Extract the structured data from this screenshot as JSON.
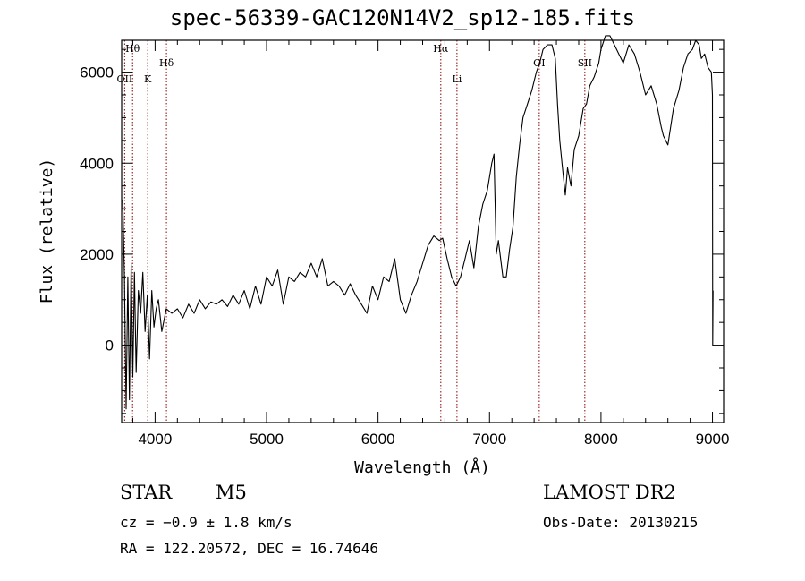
{
  "title": "spec-56339-GAC120N14V2_sp12-185.fits",
  "chart_data": {
    "type": "line",
    "xlabel": "Wavelength (Å)",
    "ylabel": "Flux (relative)",
    "xlim": [
      3700,
      9100
    ],
    "ylim": [
      -1700,
      6700
    ],
    "xticks": [
      4000,
      5000,
      6000,
      7000,
      8000,
      9000
    ],
    "yticks": [
      0,
      2000,
      4000,
      6000
    ],
    "grid": false,
    "line_color": "#000000",
    "marker_color": "#8b0000",
    "lines": [
      {
        "label": "OII",
        "x": 3727
      },
      {
        "label": "Hθ",
        "x": 3798
      },
      {
        "label": "K",
        "x": 3934
      },
      {
        "label": "Hδ",
        "x": 4102
      },
      {
        "label": "Hα",
        "x": 6563
      },
      {
        "label": "Li",
        "x": 6708
      },
      {
        "label": "OI",
        "x": 7446
      },
      {
        "label": "SII",
        "x": 7855
      }
    ],
    "series": [
      {
        "x": [
          3710,
          3725,
          3740,
          3755,
          3770,
          3785,
          3800,
          3815,
          3830,
          3850,
          3870,
          3890,
          3910,
          3930,
          3950,
          3970,
          3990,
          4010,
          4030,
          4060,
          4100,
          4150,
          4200,
          4250,
          4300,
          4350,
          4400,
          4450,
          4500,
          4550,
          4600,
          4650,
          4700,
          4750,
          4800,
          4850,
          4900,
          4950,
          5000,
          5050,
          5100,
          5150,
          5200,
          5250,
          5300,
          5350,
          5400,
          5450,
          5500,
          5550,
          5600,
          5650,
          5700,
          5750,
          5800,
          5850,
          5900,
          5950,
          6000,
          6050,
          6100,
          6150,
          6200,
          6250,
          6300,
          6350,
          6400,
          6450,
          6500,
          6550,
          6580,
          6620,
          6660,
          6700,
          6740,
          6780,
          6820,
          6860,
          6900,
          6940,
          6980,
          7020,
          7040,
          7060,
          7080,
          7100,
          7120,
          7150,
          7180,
          7210,
          7240,
          7270,
          7300,
          7340,
          7380,
          7420,
          7450,
          7480,
          7520,
          7560,
          7590,
          7610,
          7630,
          7650,
          7680,
          7700,
          7730,
          7760,
          7800,
          7840,
          7870,
          7900,
          7940,
          7980,
          8000,
          8040,
          8080,
          8120,
          8160,
          8200,
          8250,
          8300,
          8350,
          8400,
          8450,
          8500,
          8540,
          8560,
          8600,
          8650,
          8700,
          8740,
          8780,
          8820,
          8850,
          8880,
          8900,
          8930,
          8960,
          8990,
          9000,
          9002,
          9005
        ],
        "values": [
          3200,
          1500,
          -1400,
          1500,
          -1200,
          1800,
          -700,
          1600,
          -600,
          1200,
          700,
          1600,
          300,
          1100,
          -300,
          1200,
          400,
          800,
          1000,
          300,
          800,
          700,
          800,
          600,
          900,
          700,
          1000,
          800,
          950,
          900,
          1000,
          850,
          1100,
          900,
          1200,
          800,
          1300,
          900,
          1500,
          1300,
          1650,
          900,
          1500,
          1400,
          1600,
          1500,
          1800,
          1500,
          1900,
          1300,
          1400,
          1300,
          1100,
          1350,
          1100,
          900,
          700,
          1300,
          1000,
          1500,
          1400,
          1900,
          1000,
          700,
          1100,
          1400,
          1800,
          2200,
          2400,
          2300,
          2350,
          1900,
          1500,
          1300,
          1500,
          1900,
          2300,
          1700,
          2600,
          3100,
          3400,
          4000,
          4200,
          2000,
          2300,
          1900,
          1500,
          1500,
          2100,
          2600,
          3700,
          4400,
          5000,
          5300,
          5600,
          6000,
          6200,
          6500,
          6600,
          6600,
          6300,
          5300,
          4500,
          4000,
          3300,
          3900,
          3500,
          4300,
          4600,
          5200,
          5300,
          5700,
          5900,
          6200,
          6500,
          6800,
          6800,
          6600,
          6400,
          6200,
          6600,
          6400,
          6000,
          5500,
          5700,
          5300,
          4800,
          4600,
          4400,
          5200,
          5600,
          6100,
          6400,
          6500,
          6700,
          6600,
          6300,
          6400,
          6100,
          6000,
          5500,
          0,
          1200
        ]
      }
    ]
  },
  "footer": {
    "object": "STAR",
    "subclass": "M5",
    "survey": "LAMOST DR2",
    "cz": "cz = −0.9 ± 1.8 km/s",
    "obs_date": "Obs-Date: 20130215",
    "radec": "RA = 122.20572, DEC =  16.74646"
  }
}
